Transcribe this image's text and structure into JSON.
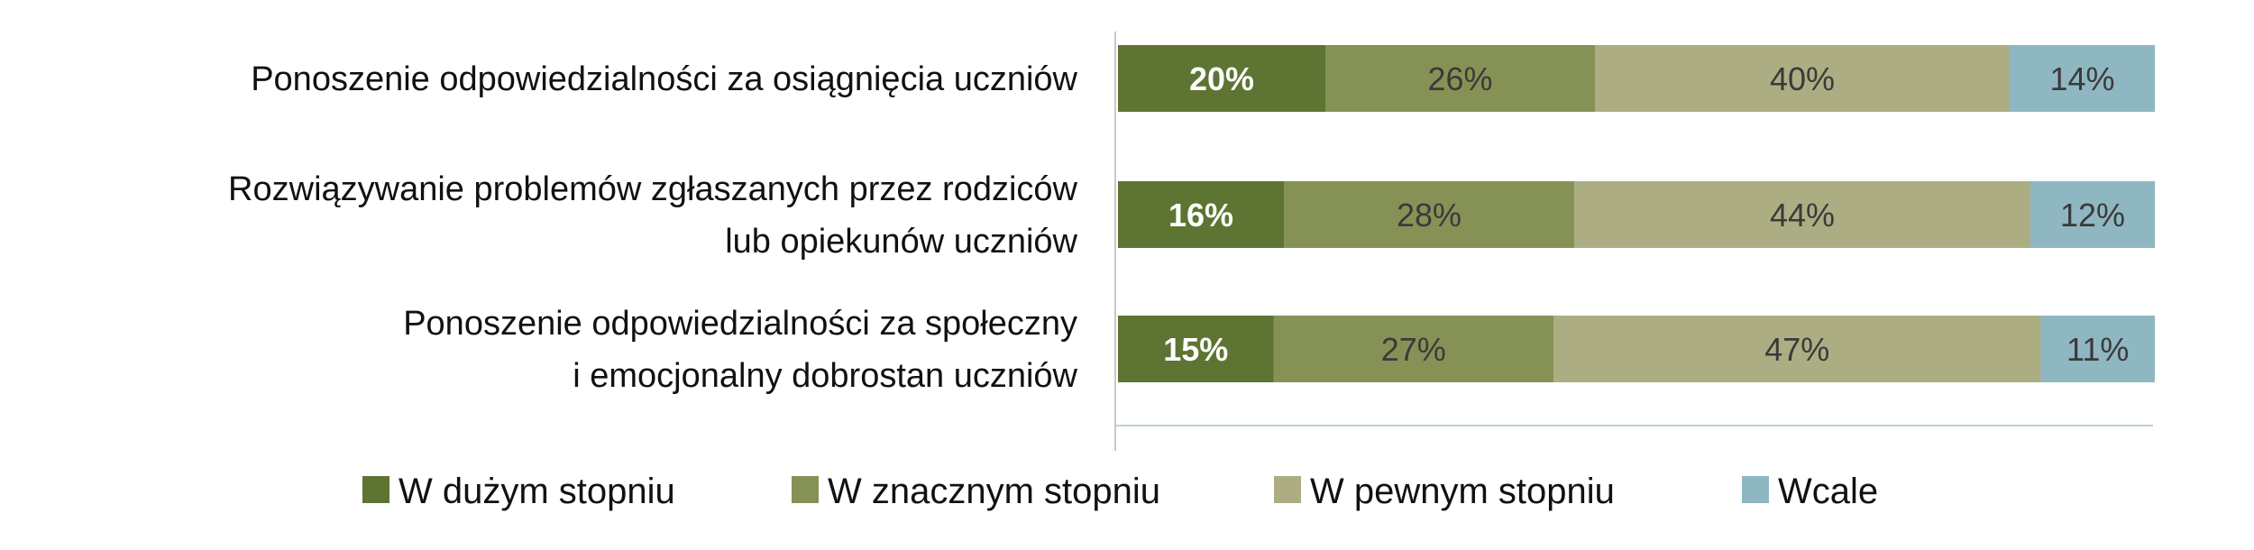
{
  "chart_data": {
    "type": "bar",
    "orientation": "horizontal",
    "stacked": true,
    "normalized_percent": true,
    "title": "",
    "xlabel": "",
    "ylabel": "",
    "xlim": [
      0,
      100
    ],
    "grid": false,
    "legend_position": "bottom",
    "categories": [
      [
        "Ponoszenie odpowiedzialności za osiągnięcia uczniów"
      ],
      [
        "Rozwiązywanie problemów zgłaszanych przez rodziców",
        "lub opiekunów uczniów"
      ],
      [
        "Ponoszenie odpowiedzialności za społeczny",
        "i emocjonalny dobrostan uczniów"
      ]
    ],
    "series": [
      {
        "name": "W dużym stopniu",
        "color": "#5e7432",
        "label_color": "#ffffff",
        "label_bold": true,
        "values": [
          20,
          16,
          15
        ]
      },
      {
        "name": "W znacznym stopniu",
        "color": "#869255",
        "label_color": "#3a3a3a",
        "label_bold": false,
        "values": [
          26,
          28,
          27
        ]
      },
      {
        "name": "W pewnym stopniu",
        "color": "#adad84",
        "label_color": "#3a3a3a",
        "label_bold": false,
        "values": [
          40,
          44,
          47
        ]
      },
      {
        "name": "Wcale",
        "color": "#8fb7c2",
        "label_color": "#3a3a3a",
        "label_bold": false,
        "values": [
          14,
          12,
          11
        ]
      }
    ],
    "value_suffix": "%"
  }
}
